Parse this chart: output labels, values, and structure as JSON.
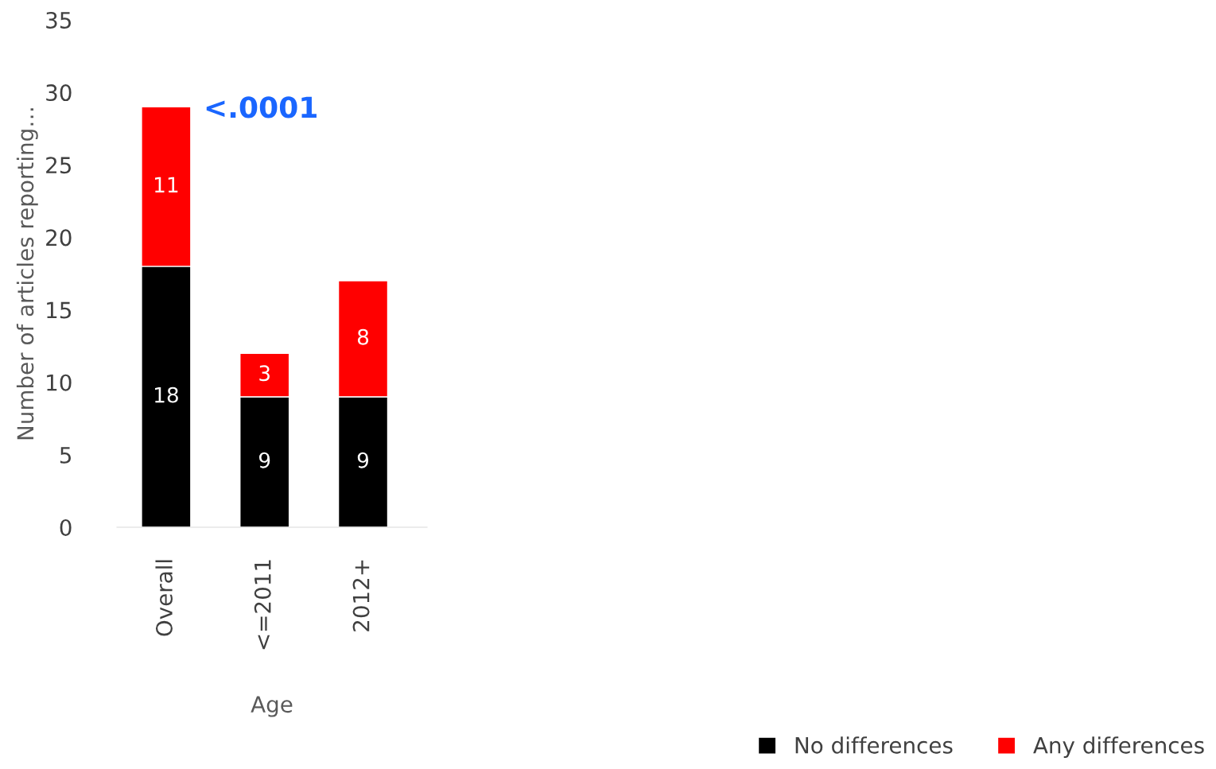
{
  "chart_data": {
    "type": "bar",
    "stacked": true,
    "categories": [
      "Overall",
      "<=2011",
      "2012+"
    ],
    "series": [
      {
        "name": "No differences",
        "color": "#000000",
        "values": [
          18,
          9,
          9
        ]
      },
      {
        "name": "Any differences",
        "color": "#ff0000",
        "values": [
          11,
          3,
          8
        ]
      }
    ],
    "xlabel": "Age",
    "ylabel": "Number of articles reporting…",
    "ylim": [
      0,
      35
    ],
    "yticks": [
      0,
      5,
      10,
      15,
      20,
      25,
      30,
      35
    ],
    "annotations": [
      "<.0001"
    ],
    "data_labels": true,
    "grid": false,
    "legend": "bottom right"
  }
}
